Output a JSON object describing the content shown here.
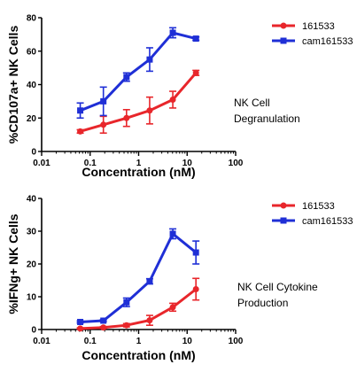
{
  "chart_data": [
    {
      "type": "line",
      "xscale": "log",
      "xlim": [
        0.01,
        100
      ],
      "ylim": [
        0,
        80
      ],
      "xticks": [
        "0.01",
        "0.1",
        "1",
        "10",
        "100"
      ],
      "yticks": [
        "0",
        "20",
        "40",
        "60",
        "80"
      ],
      "xlabel": "Concentration (nM)",
      "ylabel": "%CD107a+ NK Cells",
      "annotation": [
        "NK Cell",
        "Degranulation"
      ],
      "legend_position": "top-right",
      "series": [
        {
          "name": "161533",
          "color": "#e8262b",
          "marker": "circle",
          "x": [
            0.0625,
            0.1875,
            0.5625,
            1.6875,
            5.0625,
            15.1875
          ],
          "y": [
            12,
            16,
            20,
            24.5,
            31,
            47
          ],
          "err": [
            1,
            5,
            5,
            8,
            5,
            1.5
          ]
        },
        {
          "name": "cam161533",
          "color": "#1f2fd6",
          "marker": "square",
          "x": [
            0.0625,
            0.1875,
            0.5625,
            1.6875,
            5.0625,
            15.1875
          ],
          "y": [
            24.5,
            30,
            44.5,
            55,
            71,
            67.5
          ],
          "err": [
            4.5,
            8.5,
            2.5,
            7,
            3,
            1
          ]
        }
      ]
    },
    {
      "type": "line",
      "xscale": "log",
      "xlim": [
        0.01,
        100
      ],
      "ylim": [
        0,
        40
      ],
      "xticks": [
        "0.01",
        "0.1",
        "1",
        "10",
        "100"
      ],
      "yticks": [
        "0",
        "10",
        "20",
        "30",
        "40"
      ],
      "xlabel": "Concentration (nM)",
      "ylabel": "%IFNg+ NK Cells",
      "annotation": [
        "NK Cell Cytokine",
        "Production"
      ],
      "legend_position": "top-right",
      "series": [
        {
          "name": "161533",
          "color": "#e8262b",
          "marker": "circle",
          "x": [
            0.0625,
            0.1875,
            0.5625,
            1.6875,
            5.0625,
            15.1875
          ],
          "y": [
            0.3,
            0.6,
            1.3,
            2.8,
            6.8,
            12.3
          ],
          "err": [
            0.2,
            0.3,
            0.5,
            1.5,
            1.2,
            3.3
          ]
        },
        {
          "name": "cam161533",
          "color": "#1f2fd6",
          "marker": "square",
          "x": [
            0.0625,
            0.1875,
            0.5625,
            1.6875,
            5.0625,
            15.1875
          ],
          "y": [
            2.3,
            2.7,
            8.3,
            14.7,
            29.2,
            23.5
          ],
          "err": [
            0.3,
            0.3,
            1.3,
            0.8,
            1.5,
            3.5
          ]
        }
      ]
    }
  ]
}
